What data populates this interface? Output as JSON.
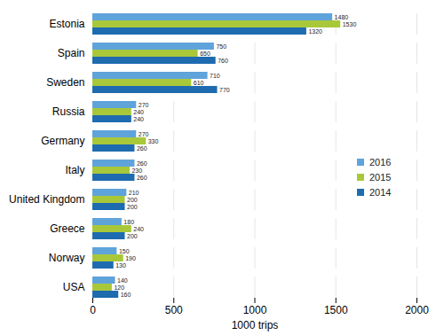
{
  "chart_data": {
    "type": "bar",
    "orientation": "horizontal",
    "categories": [
      "Estonia",
      "Spain",
      "Sweden",
      "Russia",
      "Germany",
      "Italy",
      "United Kingdom",
      "Greece",
      "Norway",
      "USA"
    ],
    "series": [
      {
        "name": "2016",
        "color": "#5fa3db",
        "values": [
          1480,
          750,
          710,
          270,
          270,
          260,
          210,
          180,
          150,
          140
        ]
      },
      {
        "name": "2015",
        "color": "#a8c83a",
        "values": [
          1530,
          650,
          610,
          240,
          330,
          230,
          200,
          240,
          190,
          120
        ]
      },
      {
        "name": "2014",
        "color": "#1e6bb0",
        "values": [
          1320,
          760,
          770,
          240,
          260,
          260,
          200,
          200,
          130,
          160
        ]
      }
    ],
    "x_label": "1000 trips",
    "xlim": [
      0,
      2000
    ],
    "xticks": [
      0,
      500,
      1000,
      1500,
      2000
    ],
    "grid": true,
    "data_labels": true,
    "legend": "right"
  }
}
